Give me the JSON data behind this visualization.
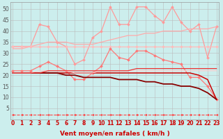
{
  "x": [
    0,
    1,
    2,
    3,
    4,
    5,
    6,
    7,
    8,
    9,
    10,
    11,
    12,
    13,
    14,
    15,
    16,
    17,
    18,
    19,
    20,
    21,
    22,
    23
  ],
  "background_color": "#cceeed",
  "grid_color": "#bbbbbb",
  "xlabel": "Vent moyen/en rafales ( km/h )",
  "xlabel_color": "#cc0000",
  "series": [
    {
      "name": "light_pink_big_zigzag",
      "color": "#ff9999",
      "lw": 0.9,
      "marker": "D",
      "ms": 2.0,
      "ls": "-",
      "data": [
        33,
        33,
        33,
        43,
        42,
        35,
        33,
        25,
        27,
        37,
        40,
        51,
        43,
        43,
        51,
        51,
        47,
        44,
        51,
        44,
        40,
        43,
        28,
        42
      ]
    },
    {
      "name": "light_pink_gently_rising",
      "color": "#ffaaaa",
      "lw": 0.9,
      "marker": null,
      "ms": 0,
      "ls": "-",
      "data": [
        32,
        32,
        33,
        34,
        35,
        35,
        35,
        34,
        34,
        34,
        35,
        36,
        37,
        38,
        38,
        39,
        39,
        40,
        40,
        40,
        41,
        41,
        41,
        42
      ]
    },
    {
      "name": "pink_flat_33",
      "color": "#ffbbbb",
      "lw": 0.9,
      "marker": "D",
      "ms": 2.0,
      "ls": "-",
      "data": [
        33,
        33,
        33,
        33,
        33,
        33,
        33,
        33,
        33,
        33,
        33,
        33,
        33,
        33,
        33,
        33,
        33,
        33,
        33,
        33,
        33,
        33,
        33,
        33
      ]
    },
    {
      "name": "medium_pink_zigzag",
      "color": "#ff7777",
      "lw": 0.9,
      "marker": "D",
      "ms": 2.0,
      "ls": "-",
      "data": [
        22,
        22,
        22,
        24,
        26,
        24,
        22,
        18,
        18,
        21,
        24,
        32,
        28,
        27,
        31,
        31,
        29,
        27,
        26,
        25,
        19,
        19,
        15,
        9
      ]
    },
    {
      "name": "dark_red_flat_declining",
      "color": "#cc0000",
      "lw": 1.1,
      "marker": null,
      "ms": 0,
      "ls": "-",
      "data": [
        21,
        21,
        21,
        21,
        21,
        21,
        21,
        21,
        21,
        21,
        21,
        21,
        21,
        21,
        21,
        21,
        21,
        21,
        21,
        21,
        21,
        20,
        18,
        9
      ]
    },
    {
      "name": "darkest_red_declining_steep",
      "color": "#880000",
      "lw": 1.3,
      "marker": null,
      "ms": 0,
      "ls": "-",
      "data": [
        21,
        21,
        21,
        21,
        21,
        21,
        20,
        20,
        19,
        19,
        19,
        19,
        18,
        18,
        18,
        17,
        17,
        16,
        16,
        15,
        15,
        14,
        12,
        9
      ]
    },
    {
      "name": "pink_lower_rising",
      "color": "#ffcccc",
      "lw": 0.8,
      "marker": null,
      "ms": 0,
      "ls": "-",
      "data": [
        21,
        21,
        21,
        22,
        22,
        22,
        22,
        21,
        21,
        21,
        22,
        22,
        22,
        22,
        22,
        22,
        22,
        22,
        22,
        22,
        22,
        22,
        22,
        22
      ]
    },
    {
      "name": "red_gently_rising",
      "color": "#ee3333",
      "lw": 0.9,
      "marker": null,
      "ms": 0,
      "ls": "-",
      "data": [
        21,
        21,
        21,
        21,
        22,
        22,
        22,
        22,
        22,
        22,
        22,
        22,
        22,
        22,
        23,
        23,
        23,
        23,
        23,
        23,
        23,
        23,
        23,
        23
      ]
    },
    {
      "name": "dashed_bottom_arrows",
      "color": "#ff4444",
      "lw": 0.8,
      "marker": "<",
      "ms": 2.0,
      "ls": "--",
      "data": [
        2,
        2,
        2,
        2,
        2,
        2,
        2,
        2,
        2,
        2,
        2,
        2,
        2,
        2,
        2,
        2,
        2,
        2,
        2,
        2,
        2,
        2,
        2,
        2
      ]
    }
  ],
  "ylim": [
    0,
    53
  ],
  "xlim_min": -0.3,
  "xlim_max": 23.3,
  "yticks": [
    5,
    10,
    15,
    20,
    25,
    30,
    35,
    40,
    45,
    50
  ],
  "xticks": [
    0,
    1,
    2,
    3,
    4,
    5,
    6,
    7,
    8,
    9,
    10,
    11,
    12,
    13,
    14,
    15,
    16,
    17,
    18,
    19,
    20,
    21,
    22,
    23
  ],
  "tick_fontsize": 5.5,
  "xlabel_fontsize": 6.5
}
